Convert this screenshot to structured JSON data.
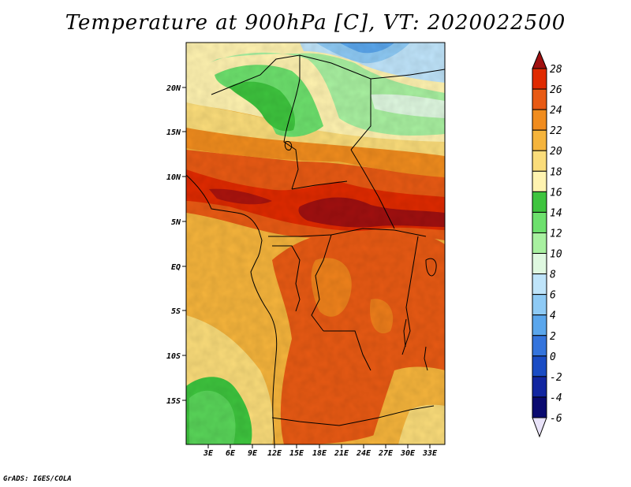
{
  "title": "Temperature at 900hPa [C], VT: 2020022500",
  "footer": "GrADS: IGES/COLA",
  "map": {
    "variable": "Temperature",
    "level": "900hPa",
    "units": "C",
    "valid_time": "2020022500",
    "lat_labels": [
      "20N",
      "15N",
      "10N",
      "5N",
      "EQ",
      "5S",
      "10S",
      "15S"
    ],
    "lon_labels": [
      "3E",
      "6E",
      "9E",
      "12E",
      "15E",
      "18E",
      "21E",
      "24E",
      "27E",
      "30E",
      "33E"
    ]
  },
  "colorbar": {
    "levels": [
      "28",
      "26",
      "24",
      "22",
      "20",
      "18",
      "16",
      "14",
      "12",
      "10",
      "8",
      "6",
      "4",
      "2",
      "0",
      "-2",
      "-4",
      "-6"
    ],
    "colors": [
      "#a01010",
      "#e02a00",
      "#e85a14",
      "#f08c1e",
      "#f5b43c",
      "#fadc7a",
      "#fff3b0",
      "#3ec43e",
      "#6de06d",
      "#a8f0a0",
      "#dff8e0",
      "#bfe4fa",
      "#8ecaf5",
      "#5aa6ec",
      "#3474dc",
      "#1a4cc4",
      "#1226a0",
      "#0a0a70",
      "#e8e2f8"
    ]
  }
}
